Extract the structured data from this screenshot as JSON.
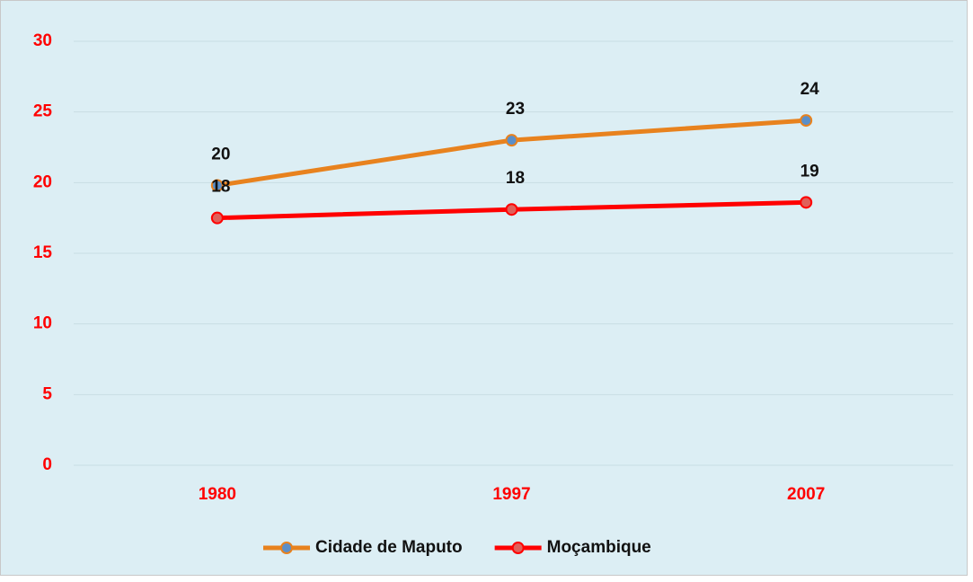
{
  "chart_data": {
    "type": "line",
    "categories": [
      "1980",
      "1997",
      "2007"
    ],
    "series": [
      {
        "name": "Cidade de Maputo",
        "color": "#e8821e",
        "marker_color": "#5b8fc9",
        "values": [
          19.8,
          23.0,
          24.4
        ],
        "value_labels": [
          "20",
          "23",
          "24"
        ]
      },
      {
        "name": "Moçambique",
        "color": "#ff0000",
        "marker_color": "#e0605a",
        "values": [
          17.5,
          18.1,
          18.6
        ],
        "value_labels": [
          "18",
          "18",
          "19"
        ]
      }
    ],
    "ylim": [
      0,
      30
    ],
    "yticks": [
      0,
      5,
      10,
      15,
      20,
      25,
      30
    ],
    "grid": true,
    "legend": "bottom"
  }
}
